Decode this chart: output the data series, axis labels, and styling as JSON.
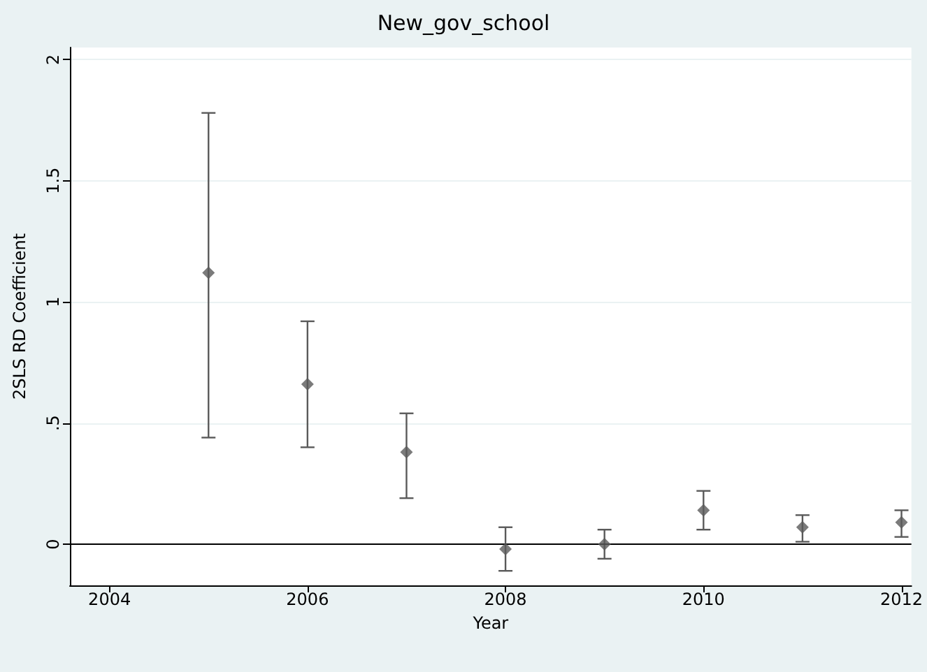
{
  "chart_data": {
    "type": "scatter",
    "title": "New_gov_school",
    "xlabel": "Year",
    "ylabel": "2SLS RD Coefficient",
    "x": [
      2005,
      2006,
      2007,
      2008,
      2009,
      2010,
      2011,
      2012
    ],
    "values": [
      1.12,
      0.66,
      0.38,
      -0.02,
      0.0,
      0.14,
      0.07,
      0.09
    ],
    "errors": [
      [
        0.44,
        1.78
      ],
      [
        0.4,
        0.92
      ],
      [
        0.19,
        0.54
      ],
      [
        -0.11,
        0.07
      ],
      [
        -0.06,
        0.06
      ],
      [
        0.06,
        0.22
      ],
      [
        0.01,
        0.12
      ],
      [
        0.03,
        0.14
      ]
    ],
    "color": "#5a5a5a",
    "marker": "diamond",
    "xlim": [
      2003.6,
      2012.1
    ],
    "xticks": [
      2004,
      2006,
      2008,
      2010,
      2012
    ],
    "ylim": [
      -0.17,
      2.05
    ],
    "yticks": [
      {
        "value": 0,
        "label": "0"
      },
      {
        "value": 0.5,
        "label": ".5"
      },
      {
        "value": 1,
        "label": "1"
      },
      {
        "value": 1.5,
        "label": "1.5"
      },
      {
        "value": 2,
        "label": "2"
      }
    ],
    "grid": "y",
    "ref_lines": [
      {
        "axis": "y",
        "value": 0,
        "color": "#000000"
      }
    ]
  }
}
